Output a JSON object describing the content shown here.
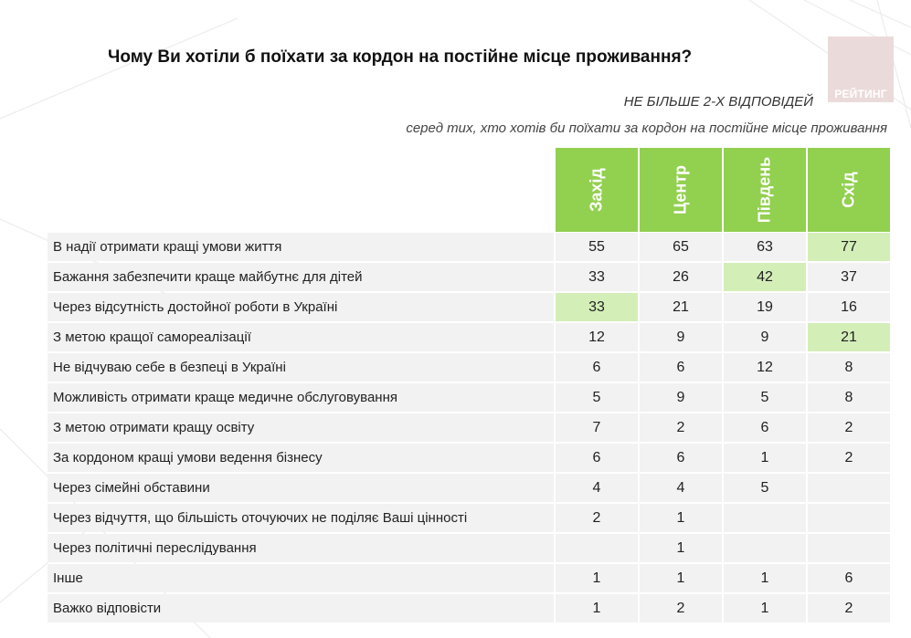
{
  "title": "Чому Ви хотіли б поїхати за кордон на постійне місце проживання?",
  "logo_text": "РЕЙТИНГ",
  "note": "НЕ БІЛЬШЕ 2-Х ВІДПОВІДЕЙ",
  "subnote": "серед тих, хто хотів би поїхати за кордон на постійне місце проживання",
  "colors": {
    "header_bg": "#92d050",
    "highlight": "#d4eeb8",
    "row_bg": "#f2f2f2",
    "logo_bg": "#eadbda"
  },
  "chart_data": {
    "type": "table",
    "columns": [
      "Захід",
      "Центр",
      "Південь",
      "Схід"
    ],
    "rows": [
      {
        "label": "В надії отримати кращі умови життя",
        "values": [
          "55",
          "65",
          "63",
          "77"
        ],
        "highlight": [
          3
        ]
      },
      {
        "label": "Бажання забезпечити краще майбутнє для дітей",
        "values": [
          "33",
          "26",
          "42",
          "37"
        ],
        "highlight": [
          2
        ]
      },
      {
        "label": "Через відсутність достойної роботи в Україні",
        "values": [
          "33",
          "21",
          "19",
          "16"
        ],
        "highlight": [
          0
        ]
      },
      {
        "label": "З метою кращої самореалізації",
        "values": [
          "12",
          "9",
          "9",
          "21"
        ],
        "highlight": [
          3
        ]
      },
      {
        "label": "Не відчуваю себе в безпеці в Україні",
        "values": [
          "6",
          "6",
          "12",
          "8"
        ],
        "highlight": []
      },
      {
        "label": "Можливість отримати краще медичне обслуговування",
        "values": [
          "5",
          "9",
          "5",
          "8"
        ],
        "highlight": []
      },
      {
        "label": "З метою отримати кращу освіту",
        "values": [
          "7",
          "2",
          "6",
          "2"
        ],
        "highlight": []
      },
      {
        "label": "За кордоном кращі умови ведення бізнесу",
        "values": [
          "6",
          "6",
          "1",
          "2"
        ],
        "highlight": []
      },
      {
        "label": "Через сімейні обставини",
        "values": [
          "4",
          "4",
          "5",
          ""
        ],
        "highlight": []
      },
      {
        "label": "Через відчуття, що більшість оточуючих не поділяє Ваші цінності",
        "values": [
          "2",
          "1",
          "",
          ""
        ],
        "highlight": []
      },
      {
        "label": "Через політичні переслідування",
        "values": [
          "",
          "1",
          "",
          ""
        ],
        "highlight": []
      },
      {
        "label": "Інше",
        "values": [
          "1",
          "1",
          "1",
          "6"
        ],
        "highlight": []
      },
      {
        "label": "Важко відповісти",
        "values": [
          "1",
          "2",
          "1",
          "2"
        ],
        "highlight": []
      }
    ]
  }
}
